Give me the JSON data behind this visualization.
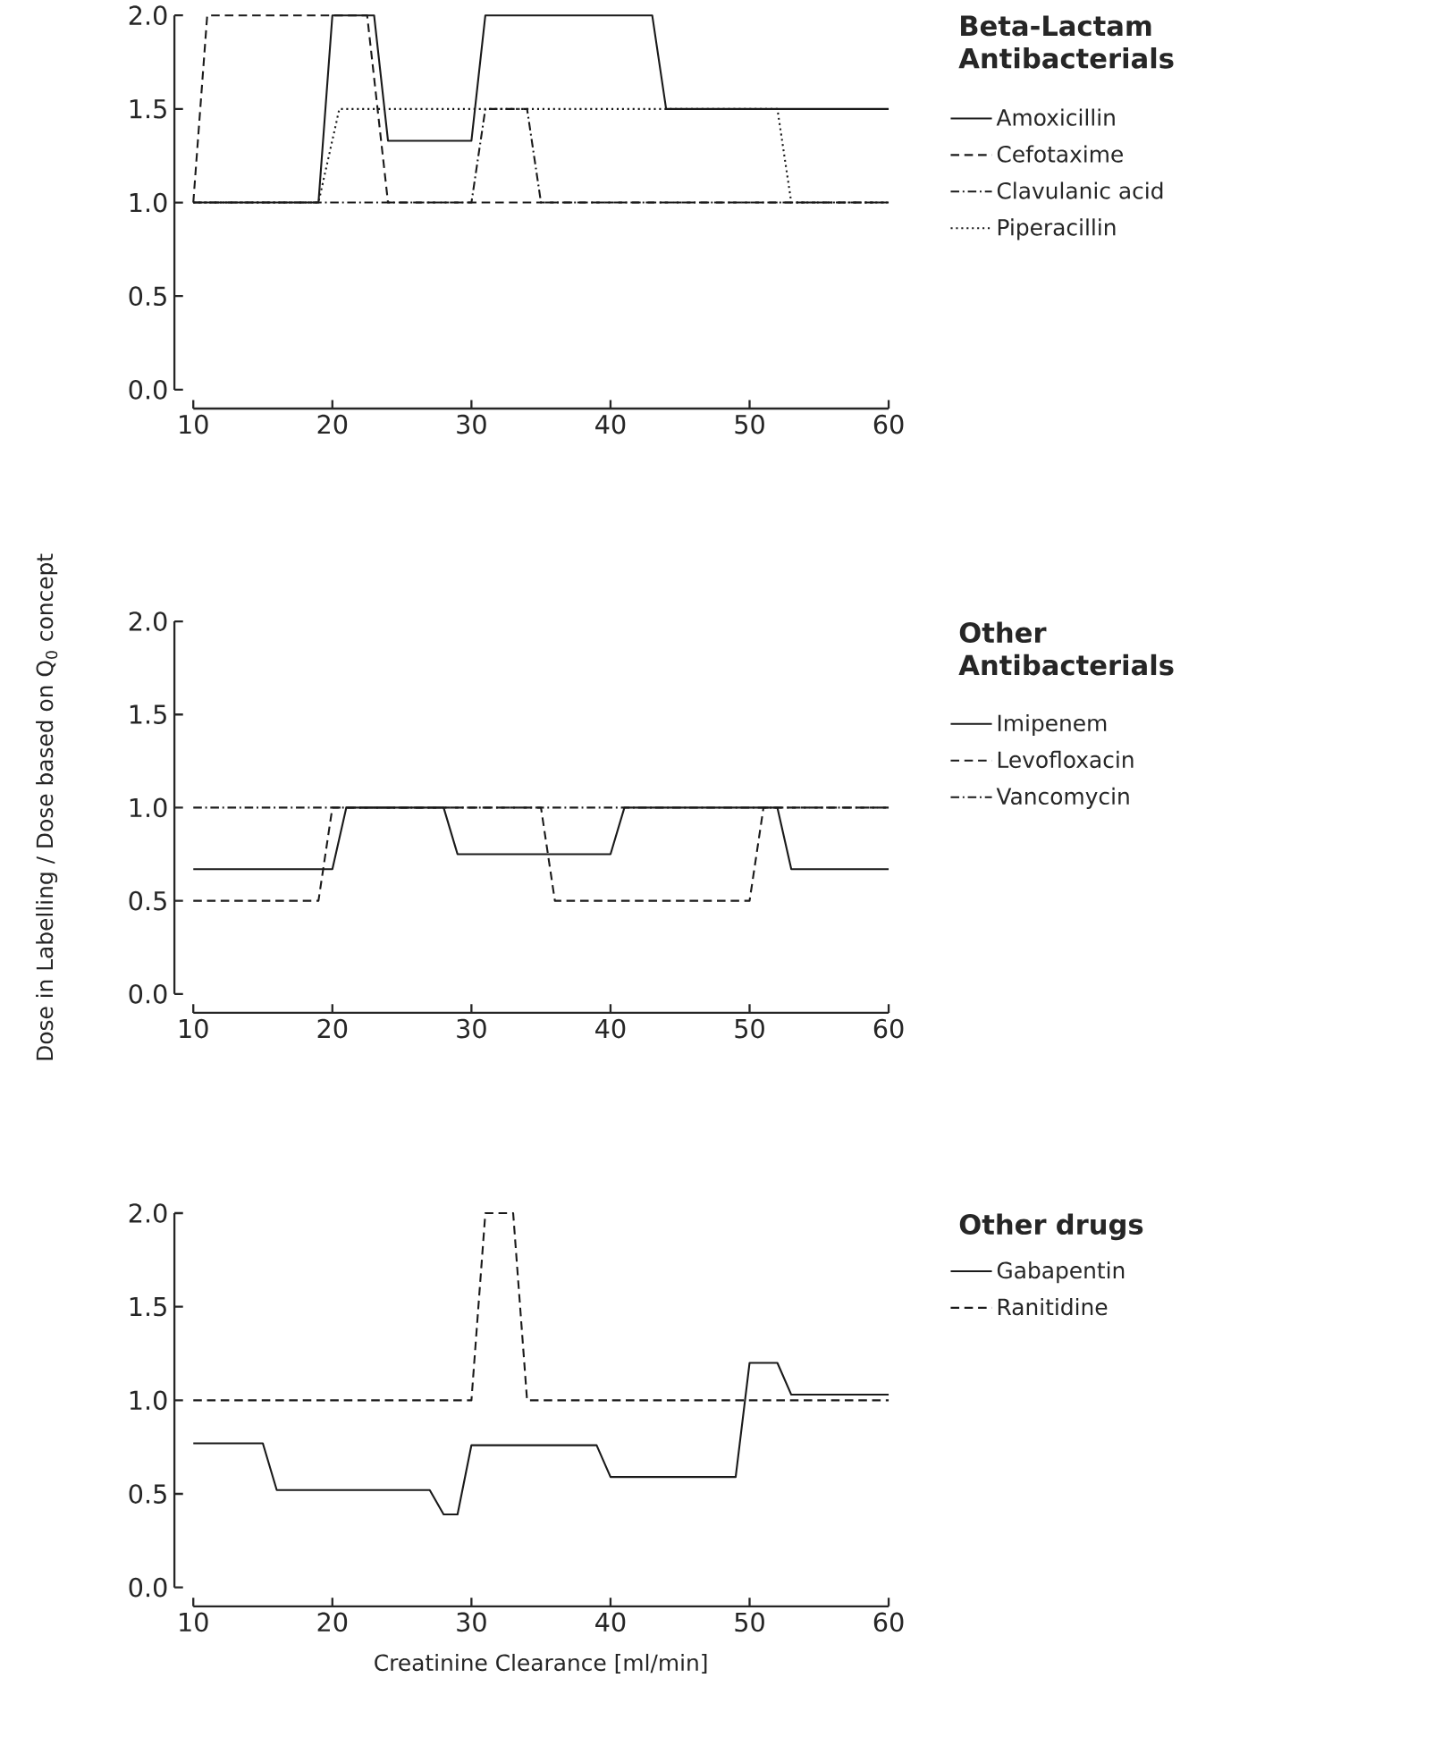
{
  "chart_data": [
    {
      "type": "line",
      "legend_title": "Beta-Lactam Antibacterials",
      "legend": "right",
      "xlim": [
        10,
        60
      ],
      "ylim": [
        0,
        2
      ],
      "xticks": [
        10,
        20,
        30,
        40,
        50,
        60
      ],
      "yticks": [
        {
          "value": 0,
          "label": "0.0"
        },
        {
          "value": 0.5,
          "label": "0.5"
        },
        {
          "value": 1,
          "label": "1.0"
        },
        {
          "value": 1.5,
          "label": "1.5"
        },
        {
          "value": 2,
          "label": "2.0"
        }
      ],
      "grid": false,
      "series": [
        {
          "name": "Amoxicillin",
          "color": "#1a1a1a",
          "line_style": "solid",
          "x": [
            10,
            19,
            20,
            23,
            24,
            30,
            31,
            43,
            44,
            60
          ],
          "values": [
            1.0,
            1.0,
            2.0,
            2.0,
            1.33,
            1.33,
            2.0,
            2.0,
            1.5,
            1.5
          ]
        },
        {
          "name": "Cefotaxime",
          "color": "#1a1a1a",
          "line_style": "dashed",
          "x": [
            10,
            11,
            22.5,
            24,
            60
          ],
          "values": [
            1.0,
            2.0,
            2.0,
            1.0,
            1.0
          ]
        },
        {
          "name": "Clavulanic acid",
          "color": "#1a1a1a",
          "line_style": "dashdot",
          "x": [
            10,
            30,
            31,
            34,
            35,
            60
          ],
          "values": [
            1.0,
            1.0,
            1.5,
            1.5,
            1.0,
            1.0
          ]
        },
        {
          "name": "Piperacillin",
          "color": "#1a1a1a",
          "line_style": "dotted",
          "x": [
            10,
            19,
            20.5,
            52,
            53,
            60
          ],
          "values": [
            1.0,
            1.0,
            1.5,
            1.5,
            1.0,
            1.0
          ]
        }
      ]
    },
    {
      "type": "line",
      "legend_title": "Other Antibacterials",
      "legend": "right",
      "ylabel": "Dose in Labelling / Dose based on Q$_{0}$ concept",
      "xlim": [
        10,
        60
      ],
      "ylim": [
        0,
        2
      ],
      "xticks": [
        10,
        20,
        30,
        40,
        50,
        60
      ],
      "yticks": [
        {
          "value": 0,
          "label": "0.0"
        },
        {
          "value": 0.5,
          "label": "0.5"
        },
        {
          "value": 1,
          "label": "1.0"
        },
        {
          "value": 1.5,
          "label": "1.5"
        },
        {
          "value": 2,
          "label": "2.0"
        }
      ],
      "grid": false,
      "series": [
        {
          "name": "Imipenem",
          "color": "#1a1a1a",
          "line_style": "solid",
          "x": [
            10,
            20,
            21,
            28,
            29,
            40,
            41,
            52,
            53,
            60
          ],
          "values": [
            0.67,
            0.67,
            1.0,
            1.0,
            0.75,
            0.75,
            1.0,
            1.0,
            0.67,
            0.67
          ]
        },
        {
          "name": "Levofloxacin",
          "color": "#1a1a1a",
          "line_style": "dashed",
          "x": [
            10,
            19,
            20,
            35,
            36,
            50,
            51,
            60
          ],
          "values": [
            0.5,
            0.5,
            1.0,
            1.0,
            0.5,
            0.5,
            1.0,
            1.0
          ]
        },
        {
          "name": "Vancomycin",
          "color": "#1a1a1a",
          "line_style": "dashdot",
          "x": [
            10,
            60
          ],
          "values": [
            1.0,
            1.0
          ]
        }
      ]
    },
    {
      "type": "line",
      "legend_title": "Other drugs",
      "legend": "right",
      "xlabel": "Creatinine Clearance [ml/min]",
      "xlim": [
        10,
        60
      ],
      "ylim": [
        0,
        2
      ],
      "xticks": [
        10,
        20,
        30,
        40,
        50,
        60
      ],
      "yticks": [
        {
          "value": 0,
          "label": "0.0"
        },
        {
          "value": 0.5,
          "label": "0.5"
        },
        {
          "value": 1,
          "label": "1.0"
        },
        {
          "value": 1.5,
          "label": "1.5"
        },
        {
          "value": 2,
          "label": "2.0"
        }
      ],
      "grid": false,
      "series": [
        {
          "name": "Gabapentin",
          "color": "#1a1a1a",
          "line_style": "solid",
          "x": [
            10,
            15,
            16,
            27,
            28,
            29,
            30,
            39,
            40,
            49,
            50,
            52,
            53,
            60
          ],
          "values": [
            0.77,
            0.77,
            0.52,
            0.52,
            0.39,
            0.39,
            0.76,
            0.76,
            0.59,
            0.59,
            1.2,
            1.2,
            1.03,
            1.03
          ]
        },
        {
          "name": "Ranitidine",
          "color": "#1a1a1a",
          "line_style": "dashed",
          "x": [
            10,
            30,
            31,
            33,
            34,
            60
          ],
          "values": [
            1.0,
            1.0,
            2.0,
            2.0,
            1.0,
            1.0
          ]
        }
      ]
    }
  ]
}
